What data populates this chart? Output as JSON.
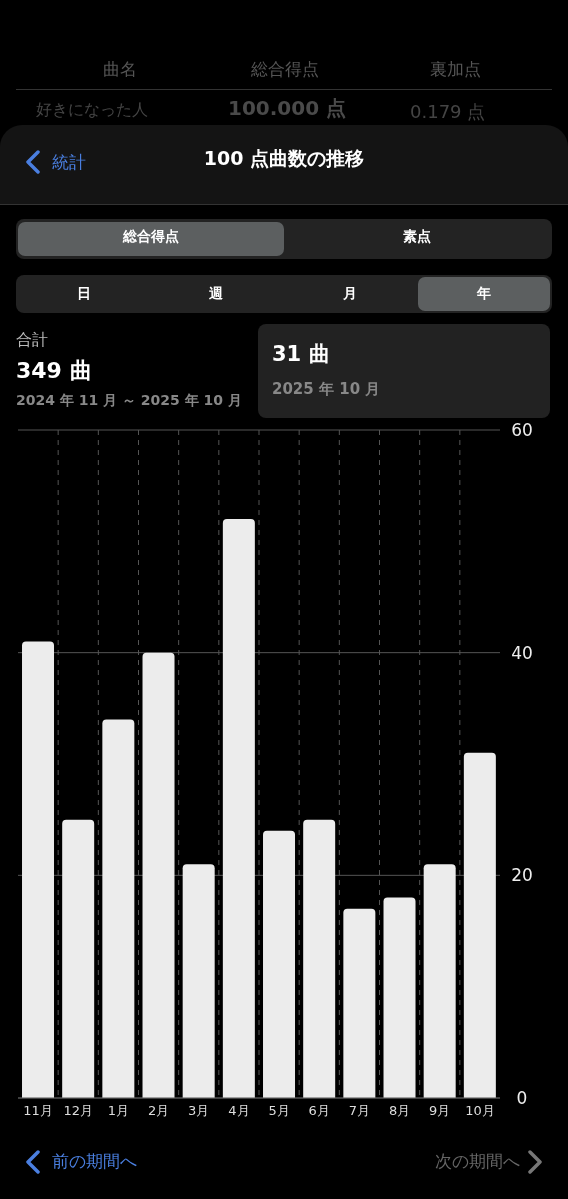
{
  "chart_data": {
    "type": "bar",
    "title": "100 点曲数の推移",
    "categories": [
      "11月",
      "12月",
      "1月",
      "2月",
      "3月",
      "4月",
      "5月",
      "6月",
      "7月",
      "8月",
      "9月",
      "10月"
    ],
    "values": [
      41,
      25,
      34,
      40,
      21,
      52,
      24,
      25,
      17,
      18,
      21,
      31
    ],
    "color": "#ececec",
    "ylim": [
      0,
      60
    ],
    "yticks": [
      0,
      20,
      40,
      60
    ],
    "grid": true,
    "annotations": [
      "曲名",
      "総合得点",
      "裏加点",
      "好きになった人",
      "100.000 点",
      "0.179 点",
      "統計",
      "総合得点",
      "素点",
      "日",
      "週",
      "月",
      "年",
      "合計",
      "349 曲",
      "2024 年 11 月 ～ 2025 年 10 月",
      "31 曲",
      "2025 年 10 月",
      "前の期間へ",
      "次の期間へ"
    ]
  }
}
